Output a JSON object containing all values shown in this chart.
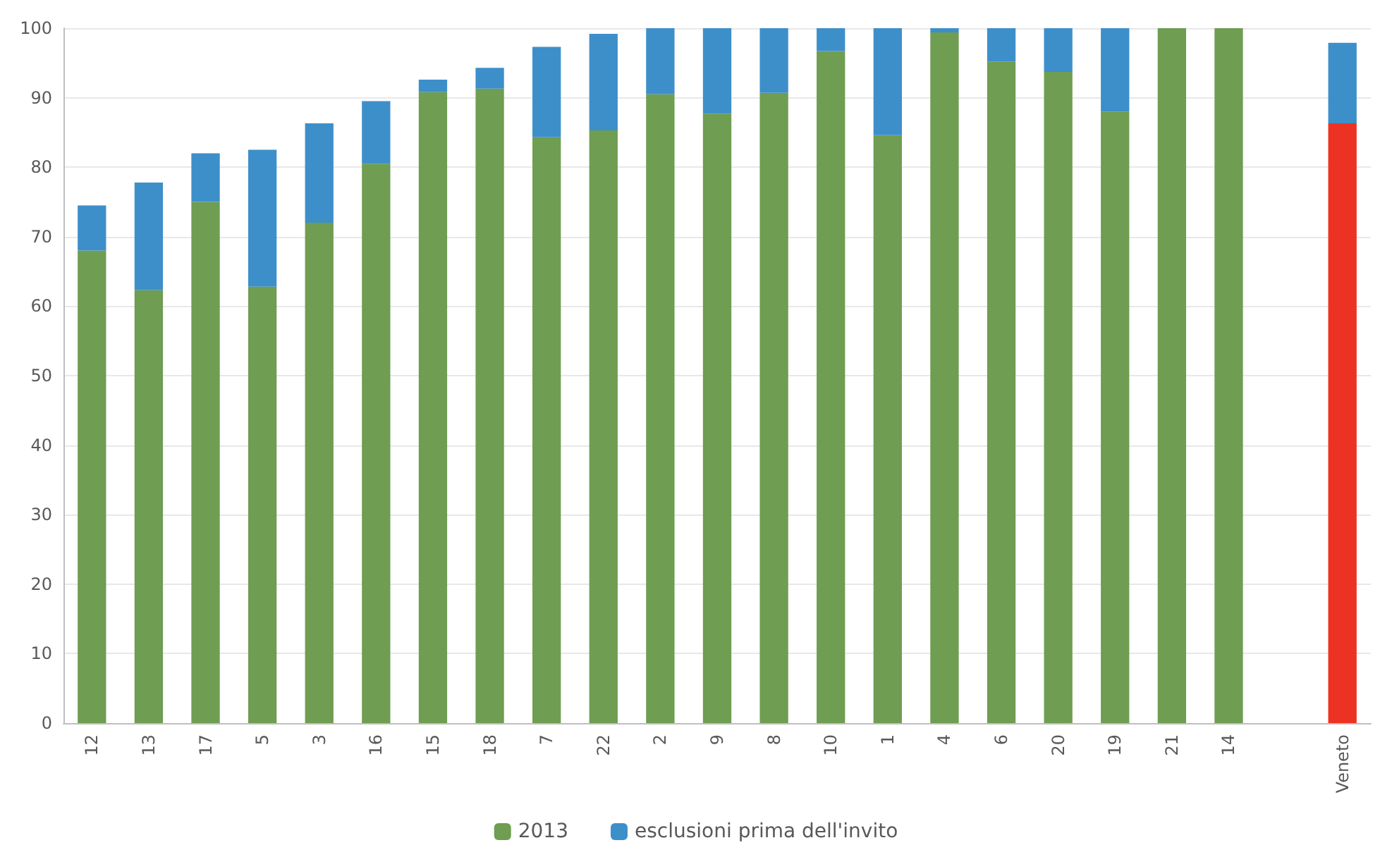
{
  "chart_data": {
    "type": "bar",
    "stacked": true,
    "categories": [
      "12",
      "13",
      "17",
      "5",
      "3",
      "16",
      "15",
      "18",
      "7",
      "22",
      "2",
      "9",
      "8",
      "10",
      "1",
      "4",
      "6",
      "20",
      "19",
      "21",
      "14",
      null,
      "Veneto"
    ],
    "series": [
      {
        "name": "2013",
        "color": "#6f9d51",
        "colors": [
          "#6f9d51",
          "#6f9d51",
          "#6f9d51",
          "#6f9d51",
          "#6f9d51",
          "#6f9d51",
          "#6f9d51",
          "#6f9d51",
          "#6f9d51",
          "#6f9d51",
          "#6f9d51",
          "#6f9d51",
          "#6f9d51",
          "#6f9d51",
          "#6f9d51",
          "#6f9d51",
          "#6f9d51",
          "#6f9d51",
          "#6f9d51",
          "#6f9d51",
          "#6f9d51",
          null,
          "#ec3323"
        ],
        "values": [
          68,
          62.3,
          75,
          62.8,
          72,
          80.5,
          90.8,
          91.3,
          84.3,
          85.3,
          90.5,
          87.7,
          90.7,
          96.7,
          84.6,
          99.4,
          95.2,
          93.7,
          88,
          100,
          100,
          null,
          86.3
        ]
      },
      {
        "name": "esclusioni prima dell'invito",
        "color": "#3d8fca",
        "values": [
          6.5,
          15.5,
          7,
          19.7,
          14.3,
          9,
          1.8,
          3,
          13,
          13.9,
          9.5,
          12.3,
          9.3,
          3.3,
          15.4,
          0.6,
          4.8,
          6.3,
          12,
          0,
          0,
          null,
          11.6
        ]
      }
    ],
    "ylim": [
      0,
      100
    ],
    "yticks": [
      0,
      10,
      20,
      30,
      40,
      50,
      60,
      70,
      80,
      90,
      100
    ],
    "grid": "y",
    "legend": "bottom"
  }
}
